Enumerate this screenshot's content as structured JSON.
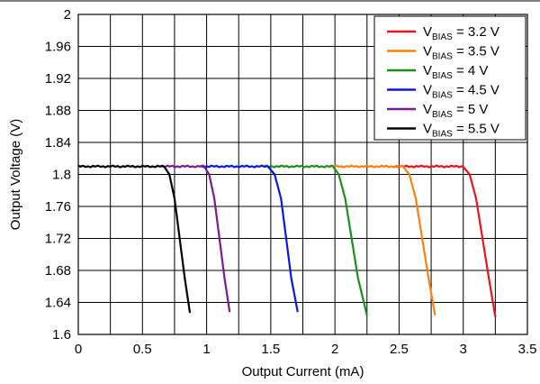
{
  "chart_data": {
    "type": "line",
    "title": "",
    "xlabel": "Output Current (mA)",
    "ylabel": "Output Voltage (V)",
    "xlim": [
      0,
      3.5
    ],
    "ylim": [
      1.6,
      2.0
    ],
    "x_ticks": [
      0,
      0.5,
      1,
      1.5,
      2,
      2.5,
      3,
      3.5
    ],
    "x_tick_labels": [
      "0",
      "0.5",
      "1",
      "1.5",
      "2",
      "2.5",
      "3",
      "3.5"
    ],
    "x_minor_step": 0.25,
    "y_ticks": [
      1.6,
      1.64,
      1.68,
      1.72,
      1.76,
      1.8,
      1.84,
      1.88,
      1.92,
      1.96,
      2.0
    ],
    "y_tick_labels": [
      "1.6",
      "1.64",
      "1.68",
      "1.72",
      "1.76",
      "1.8",
      "1.84",
      "1.88",
      "1.92",
      "1.96",
      "2"
    ],
    "grid": true,
    "legend_position": "top-right",
    "series": [
      {
        "name": "VBIAS = 3.2 V",
        "label_main": "V",
        "label_sub": "BIAS",
        "label_tail": " = 3.2 V",
        "color": "#e8141c",
        "x": [
          2.45,
          3.0,
          3.05,
          3.1,
          3.15,
          3.2,
          3.25
        ],
        "y": [
          1.81,
          1.81,
          1.8,
          1.77,
          1.72,
          1.67,
          1.622
        ]
      },
      {
        "name": "VBIAS = 3.5 V",
        "label_main": "V",
        "label_sub": "BIAS",
        "label_tail": " = 3.5 V",
        "color": "#ff7f0e",
        "x": [
          1.95,
          2.53,
          2.58,
          2.63,
          2.68,
          2.73,
          2.78
        ],
        "y": [
          1.81,
          1.81,
          1.8,
          1.77,
          1.72,
          1.67,
          1.624
        ]
      },
      {
        "name": "VBIAS = 4 V",
        "label_main": "V",
        "label_sub": "BIAS",
        "label_tail": " = 4 V",
        "color": "#1a8f1a",
        "x": [
          1.45,
          1.98,
          2.03,
          2.08,
          2.13,
          2.18,
          2.25
        ],
        "y": [
          1.81,
          1.81,
          1.8,
          1.77,
          1.72,
          1.67,
          1.624
        ]
      },
      {
        "name": "VBIAS = 4.5 V",
        "label_main": "V",
        "label_sub": "BIAS",
        "label_tail": " = 4.5 V",
        "color": "#0b18e0",
        "x": [
          0.95,
          1.48,
          1.53,
          1.58,
          1.62,
          1.66,
          1.71
        ],
        "y": [
          1.81,
          1.81,
          1.8,
          1.77,
          1.72,
          1.67,
          1.628
        ]
      },
      {
        "name": "VBIAS = 5 V",
        "label_main": "V",
        "label_sub": "BIAS",
        "label_tail": " = 5 V",
        "color": "#7d1a8f",
        "x": [
          0.65,
          0.98,
          1.02,
          1.06,
          1.1,
          1.14,
          1.18
        ],
        "y": [
          1.81,
          1.81,
          1.8,
          1.77,
          1.72,
          1.67,
          1.628
        ]
      },
      {
        "name": "VBIAS = 5.5 V",
        "label_main": "V",
        "label_sub": "BIAS",
        "label_tail": " = 5.5 V",
        "color": "#000000",
        "x": [
          0.0,
          0.67,
          0.71,
          0.75,
          0.79,
          0.83,
          0.87
        ],
        "y": [
          1.81,
          1.81,
          1.8,
          1.77,
          1.72,
          1.67,
          1.627
        ]
      }
    ]
  }
}
